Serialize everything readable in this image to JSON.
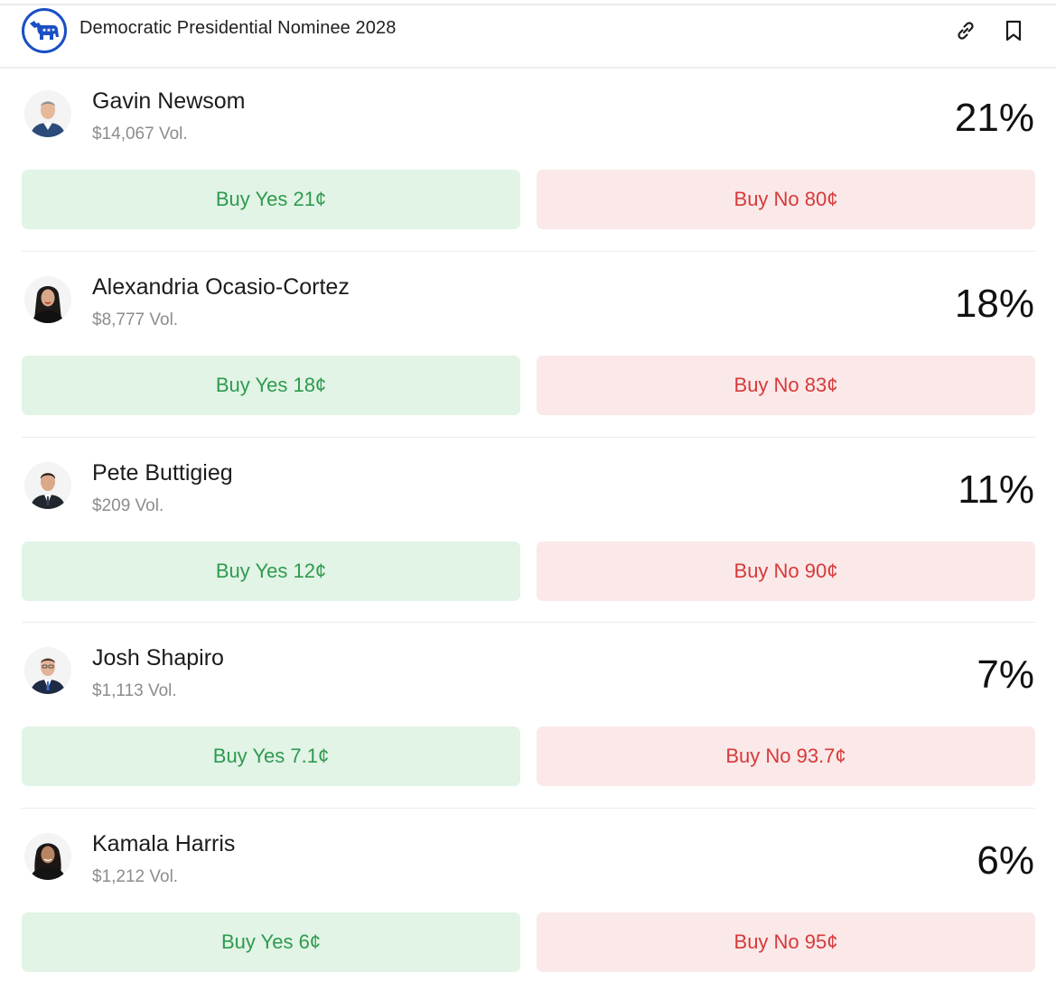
{
  "header": {
    "title": "Democratic Presidential Nominee 2028",
    "logo_icon": "donkey-icon",
    "link_icon": "link-icon",
    "bookmark_icon": "bookmark-icon",
    "brand_color": "#1a4fc4"
  },
  "colors": {
    "yes_bg": "#e1f4e6",
    "yes_text": "#2f9a4e",
    "no_bg": "#fbe8e8",
    "no_text": "#d63a3a"
  },
  "candidates": [
    {
      "name": "Gavin Newsom",
      "volume": "$14,067 Vol.",
      "chance": "21%",
      "buy_yes": "Buy Yes 21¢",
      "buy_no": "Buy No 80¢"
    },
    {
      "name": "Alexandria Ocasio-Cortez",
      "volume": "$8,777 Vol.",
      "chance": "18%",
      "buy_yes": "Buy Yes 18¢",
      "buy_no": "Buy No 83¢"
    },
    {
      "name": "Pete Buttigieg",
      "volume": "$209 Vol.",
      "chance": "11%",
      "buy_yes": "Buy Yes 12¢",
      "buy_no": "Buy No 90¢"
    },
    {
      "name": "Josh Shapiro",
      "volume": "$1,113 Vol.",
      "chance": "7%",
      "buy_yes": "Buy Yes 7.1¢",
      "buy_no": "Buy No 93.7¢"
    },
    {
      "name": "Kamala Harris",
      "volume": "$1,212 Vol.",
      "chance": "6%",
      "buy_yes": "Buy Yes 6¢",
      "buy_no": "Buy No 95¢"
    }
  ]
}
